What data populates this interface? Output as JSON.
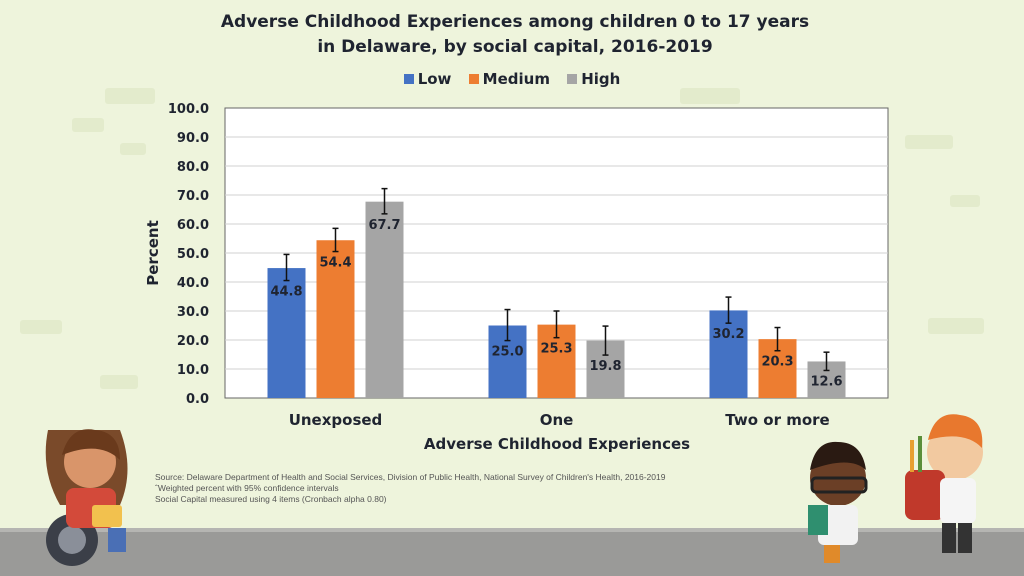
{
  "chart_data": {
    "type": "bar",
    "title_line1": "Adverse Childhood Experiences among children 0 to 17 years",
    "title_line2": "in Delaware, by social capital, 2016-2019",
    "categories": [
      "Unexposed",
      "One",
      "Two or more"
    ],
    "series": [
      {
        "name": "Low",
        "color": "#4472c4",
        "values": [
          44.8,
          25.0,
          30.2
        ],
        "labels": [
          "44.8",
          "25.0",
          "30.2"
        ],
        "ci_low": [
          40.5,
          19.8,
          25.8
        ],
        "ci_high": [
          49.5,
          30.5,
          34.8
        ]
      },
      {
        "name": "Medium",
        "color": "#ed7d31",
        "values": [
          54.4,
          25.3,
          20.3
        ],
        "labels": [
          "54.4",
          "25.3",
          "20.3"
        ],
        "ci_low": [
          50.5,
          20.8,
          16.3
        ],
        "ci_high": [
          58.5,
          30.0,
          24.3
        ]
      },
      {
        "name": "High",
        "color": "#a5a5a5",
        "values": [
          67.7,
          19.8,
          12.6
        ],
        "labels": [
          "67.7",
          "19.8",
          "12.6"
        ],
        "ci_low": [
          63.5,
          14.8,
          9.5
        ],
        "ci_high": [
          72.2,
          24.8,
          15.8
        ]
      }
    ],
    "yticks": [
      "100.0",
      "90.0",
      "80.0",
      "70.0",
      "60.0",
      "50.0",
      "40.0",
      "30.0",
      "20.0",
      "10.0",
      "0.0"
    ],
    "ylim": [
      0,
      100
    ],
    "xlabel": "Adverse Childhood Experiences",
    "ylabel": "Percent",
    "grid": true,
    "legend_position": "top-center"
  },
  "source_lines": [
    "Source: Delaware Department of Health and Social Services, Division of Public Health, National Survey of Children's Health, 2016-2019",
    "ˆWeighted percent with 95% confidence intervals",
    "Social Capital measured using 4 items (Cronbach alpha 0.80)"
  ]
}
